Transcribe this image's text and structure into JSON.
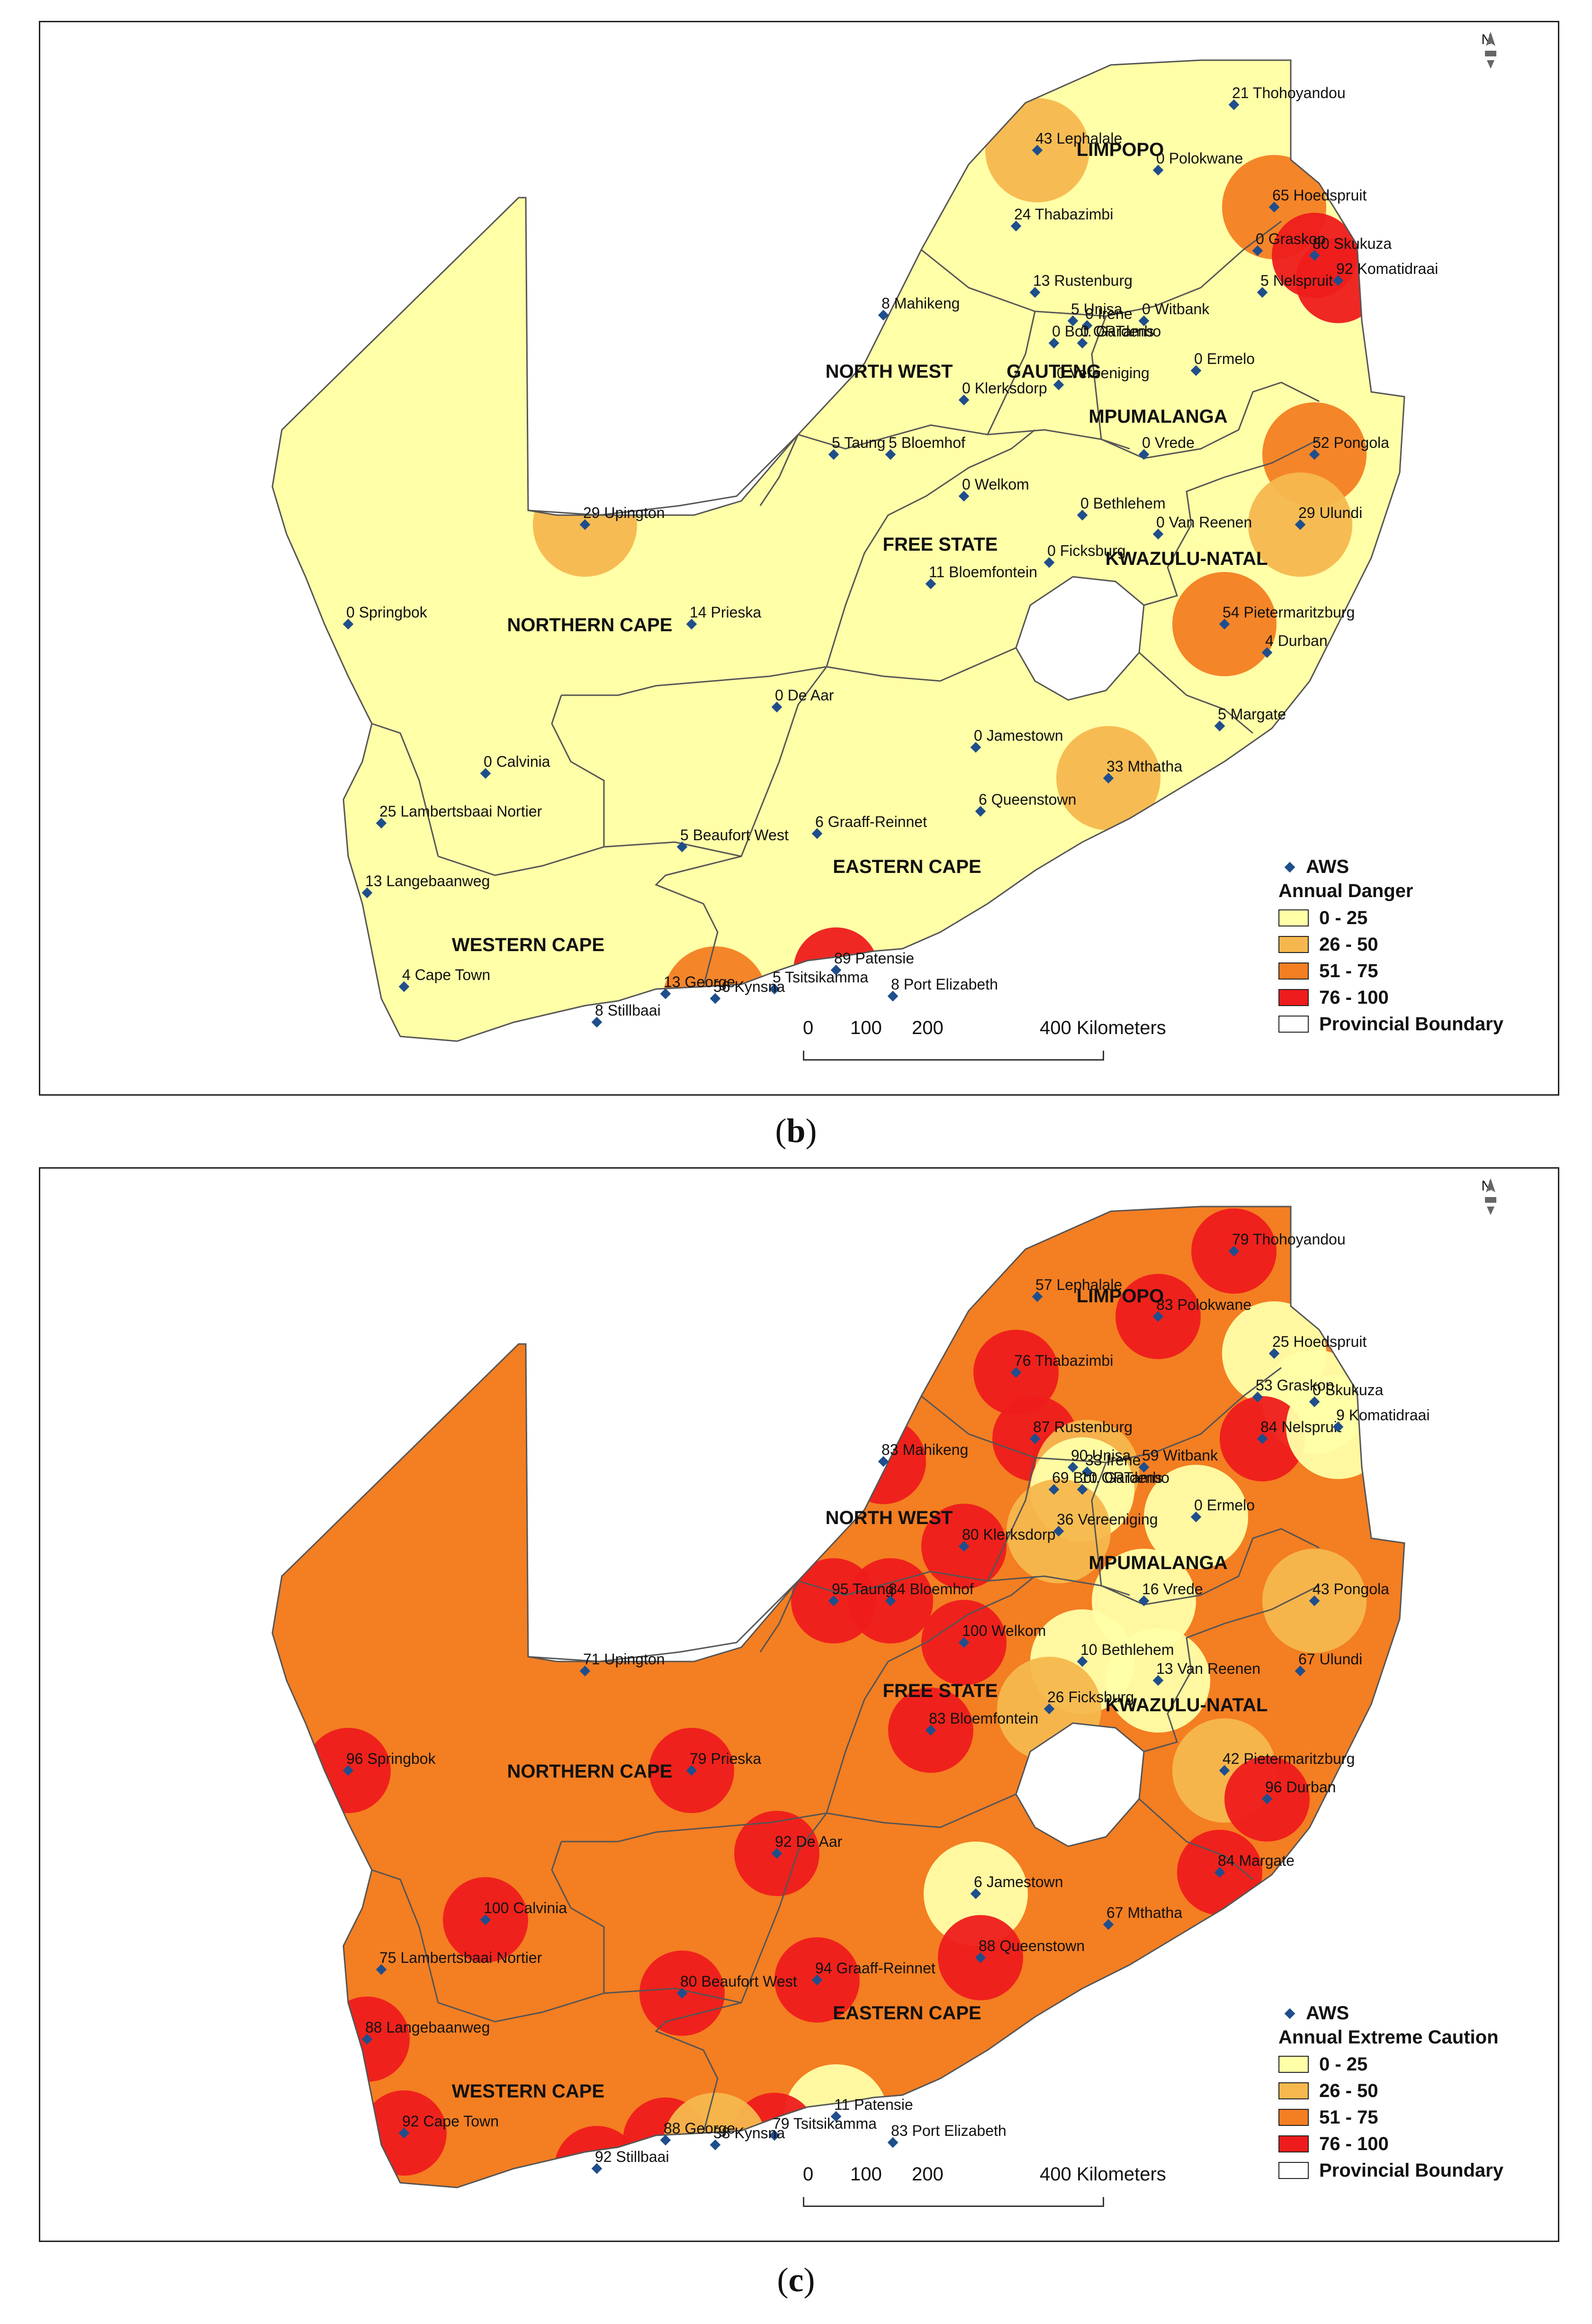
{
  "panels": [
    {
      "id": "b",
      "caption_letter": "b",
      "legend": {
        "aws_label": "AWS",
        "title": "Annual Danger",
        "classes": [
          {
            "label": "0 - 25",
            "color": "#FFFFA8"
          },
          {
            "label": "26 - 50",
            "color": "#F6B84E"
          },
          {
            "label": "51 - 75",
            "color": "#F47E22"
          },
          {
            "label": "76 - 100",
            "color": "#EE1C1C"
          }
        ],
        "boundary_label": "Provincial Boundary"
      },
      "scale": {
        "ticks": [
          "0",
          "100",
          "200",
          "400 Kilometers"
        ]
      },
      "north": "N",
      "provinces": [
        "LIMPOPO",
        "NORTH WEST",
        "GAUTENG",
        "MPUMALANGA",
        "FREE STATE",
        "KWAZULU-NATAL",
        "NORTHERN CAPE",
        "EASTERN CAPE",
        "WESTERN CAPE"
      ],
      "stations": [
        {
          "value": 21,
          "name": "Thohoyandou"
        },
        {
          "value": 43,
          "name": "Lephalale"
        },
        {
          "value": 0,
          "name": "Polokwane"
        },
        {
          "value": 65,
          "name": "Hoedspruit"
        },
        {
          "value": 24,
          "name": "Thabazimbi"
        },
        {
          "value": 0,
          "name": "Graskop"
        },
        {
          "value": 80,
          "name": "Skukuza"
        },
        {
          "value": 92,
          "name": "Komatidraai"
        },
        {
          "value": 13,
          "name": "Rustenburg"
        },
        {
          "value": 5,
          "name": "Nelspruit"
        },
        {
          "value": 8,
          "name": "Mahikeng"
        },
        {
          "value": 5,
          "name": "Unisa"
        },
        {
          "value": 0,
          "name": "Irene"
        },
        {
          "value": 0,
          "name": "Witbank"
        },
        {
          "value": 0,
          "name": "Bot. Gardens"
        },
        {
          "value": 0,
          "name": "ORTambo"
        },
        {
          "value": 0,
          "name": "Ermelo"
        },
        {
          "value": 0,
          "name": "Vereeniging"
        },
        {
          "value": 0,
          "name": "Klerksdorp"
        },
        {
          "value": 5,
          "name": "Taung"
        },
        {
          "value": 5,
          "name": "Bloemhof"
        },
        {
          "value": 0,
          "name": "Vrede"
        },
        {
          "value": 52,
          "name": "Pongola"
        },
        {
          "value": 0,
          "name": "Welkom"
        },
        {
          "value": 0,
          "name": "Bethlehem"
        },
        {
          "value": 0,
          "name": "Van Reenen"
        },
        {
          "value": 29,
          "name": "Upington"
        },
        {
          "value": 29,
          "name": "Ulundi"
        },
        {
          "value": 0,
          "name": "Ficksburg"
        },
        {
          "value": 11,
          "name": "Bloemfontein"
        },
        {
          "value": 0,
          "name": "Springbok"
        },
        {
          "value": 14,
          "name": "Prieska"
        },
        {
          "value": 54,
          "name": "Pietermaritzburg"
        },
        {
          "value": 4,
          "name": "Durban"
        },
        {
          "value": 0,
          "name": "De Aar"
        },
        {
          "value": 5,
          "name": "Margate"
        },
        {
          "value": 0,
          "name": "Jamestown"
        },
        {
          "value": 0,
          "name": "Calvinia"
        },
        {
          "value": 33,
          "name": "Mthatha"
        },
        {
          "value": 25,
          "name": "Lambertsbaai Nortier"
        },
        {
          "value": 6,
          "name": "Queenstown"
        },
        {
          "value": 5,
          "name": "Beaufort West"
        },
        {
          "value": 6,
          "name": "Graaff-Reinnet"
        },
        {
          "value": 13,
          "name": "Langebaanweg"
        },
        {
          "value": 89,
          "name": "Patensie"
        },
        {
          "value": 4,
          "name": "Cape Town"
        },
        {
          "value": 13,
          "name": "George"
        },
        {
          "value": 5,
          "name": "Tsitsikamma"
        },
        {
          "value": 8,
          "name": "Port Elizabeth"
        },
        {
          "value": 56,
          "name": "Kynsna"
        },
        {
          "value": 8,
          "name": "Stillbaai"
        }
      ]
    },
    {
      "id": "c",
      "caption_letter": "c",
      "legend": {
        "aws_label": "AWS",
        "title": "Annual Extreme Caution",
        "classes": [
          {
            "label": "0 - 25",
            "color": "#FFFFA8"
          },
          {
            "label": "26 - 50",
            "color": "#F6B84E"
          },
          {
            "label": "51 - 75",
            "color": "#F47E22"
          },
          {
            "label": "76 - 100",
            "color": "#EE1C1C"
          }
        ],
        "boundary_label": "Provincial Boundary"
      },
      "scale": {
        "ticks": [
          "0",
          "100",
          "200",
          "400 Kilometers"
        ]
      },
      "north": "N",
      "provinces": [
        "LIMPOPO",
        "NORTH WEST",
        "MPUMALANGA",
        "FREE STATE",
        "KWAZULU-NATAL",
        "NORTHERN CAPE",
        "EASTERN CAPE",
        "WESTERN CAPE"
      ],
      "stations": [
        {
          "value": 79,
          "name": "Thohoyandou"
        },
        {
          "value": 57,
          "name": "Lephalale"
        },
        {
          "value": 83,
          "name": "Polokwane"
        },
        {
          "value": 25,
          "name": "Hoedspruit"
        },
        {
          "value": 76,
          "name": "Thabazimbi"
        },
        {
          "value": 53,
          "name": "Graskop"
        },
        {
          "value": 0,
          "name": "Skukuza"
        },
        {
          "value": 84,
          "name": "Nelspruit"
        },
        {
          "value": 9,
          "name": "Komatidraai"
        },
        {
          "value": 83,
          "name": "Mahikeng"
        },
        {
          "value": 87,
          "name": "Rustenburg"
        },
        {
          "value": 90,
          "name": "Unisa"
        },
        {
          "value": 33,
          "name": "Irene"
        },
        {
          "value": 59,
          "name": "Witbank"
        },
        {
          "value": 69,
          "name": "Bot. Gardens"
        },
        {
          "value": 10,
          "name": "ORTambo"
        },
        {
          "value": 0,
          "name": "Ermelo"
        },
        {
          "value": 36,
          "name": "Vereeniging"
        },
        {
          "value": 80,
          "name": "Klerksdorp"
        },
        {
          "value": 95,
          "name": "Taung"
        },
        {
          "value": 84,
          "name": "Bloemhof"
        },
        {
          "value": 16,
          "name": "Vrede"
        },
        {
          "value": 43,
          "name": "Pongola"
        },
        {
          "value": 100,
          "name": "Welkom"
        },
        {
          "value": 71,
          "name": "Upington"
        },
        {
          "value": 10,
          "name": "Bethlehem"
        },
        {
          "value": 67,
          "name": "Ulundi"
        },
        {
          "value": 13,
          "name": "Van Reenen"
        },
        {
          "value": 26,
          "name": "Ficksburg"
        },
        {
          "value": 83,
          "name": "Bloemfontein"
        },
        {
          "value": 96,
          "name": "Springbok"
        },
        {
          "value": 79,
          "name": "Prieska"
        },
        {
          "value": 42,
          "name": "Pietermaritzburg"
        },
        {
          "value": 96,
          "name": "Durban"
        },
        {
          "value": 92,
          "name": "De Aar"
        },
        {
          "value": 84,
          "name": "Margate"
        },
        {
          "value": 6,
          "name": "Jamestown"
        },
        {
          "value": 100,
          "name": "Calvinia"
        },
        {
          "value": 67,
          "name": "Mthatha"
        },
        {
          "value": 75,
          "name": "Lambertsbaai Nortier"
        },
        {
          "value": 88,
          "name": "Queenstown"
        },
        {
          "value": 80,
          "name": "Beaufort West"
        },
        {
          "value": 94,
          "name": "Graaff-Reinnet"
        },
        {
          "value": 88,
          "name": "Langebaanweg"
        },
        {
          "value": 11,
          "name": "Patensie"
        },
        {
          "value": 92,
          "name": "Cape Town"
        },
        {
          "value": 79,
          "name": "Tsitsikamma"
        },
        {
          "value": 83,
          "name": "Port Elizabeth"
        },
        {
          "value": 88,
          "name": "George"
        },
        {
          "value": 38,
          "name": "Kynsna"
        },
        {
          "value": 92,
          "name": "Stillbaai"
        }
      ]
    }
  ]
}
